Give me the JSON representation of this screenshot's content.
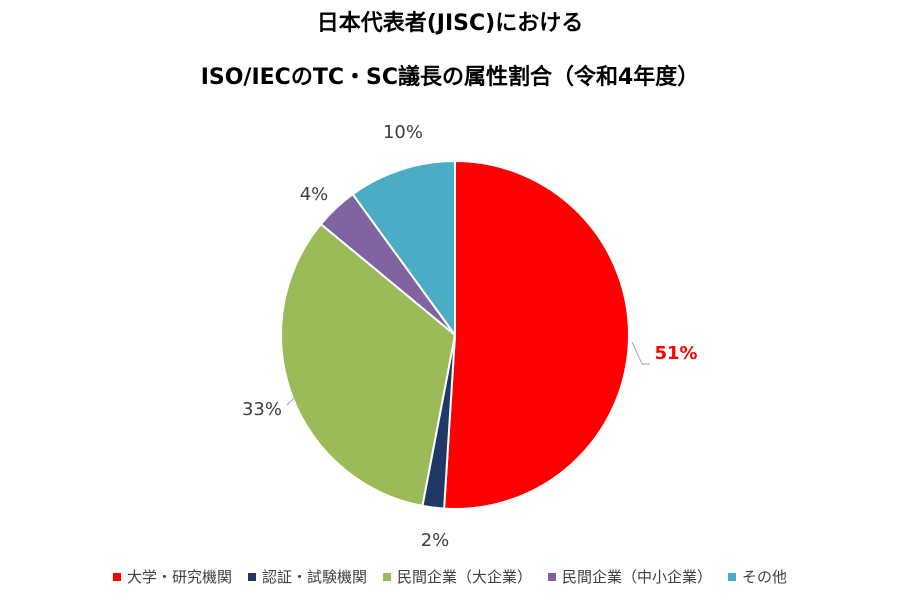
{
  "chart_data": {
    "type": "pie",
    "title_line1": "日本代表者(JISC)における",
    "title_line2": "ISO/IECのTC・SC議長の属性割合（令和4年度）",
    "slices": [
      {
        "label": "大学・研究機関",
        "value": 51,
        "display": "51%",
        "color": "#FF0000",
        "label_color": "#FF0000",
        "label_bold": true
      },
      {
        "label": "認証・試験機関",
        "value": 2,
        "display": "2%",
        "color": "#1F3864",
        "label_color": "#404040",
        "label_bold": false
      },
      {
        "label": "民間企業（大企業）",
        "value": 33,
        "display": "33%",
        "color": "#9BBB59",
        "label_color": "#404040",
        "label_bold": false
      },
      {
        "label": "民間企業（中小企業）",
        "value": 4,
        "display": "4%",
        "color": "#8064A2",
        "label_color": "#404040",
        "label_bold": false
      },
      {
        "label": "その他",
        "value": 10,
        "display": "10%",
        "color": "#4BACC6",
        "label_color": "#404040",
        "label_bold": false
      }
    ],
    "start_angle_deg": 0,
    "direction": "clockwise",
    "legend_position": "bottom"
  }
}
